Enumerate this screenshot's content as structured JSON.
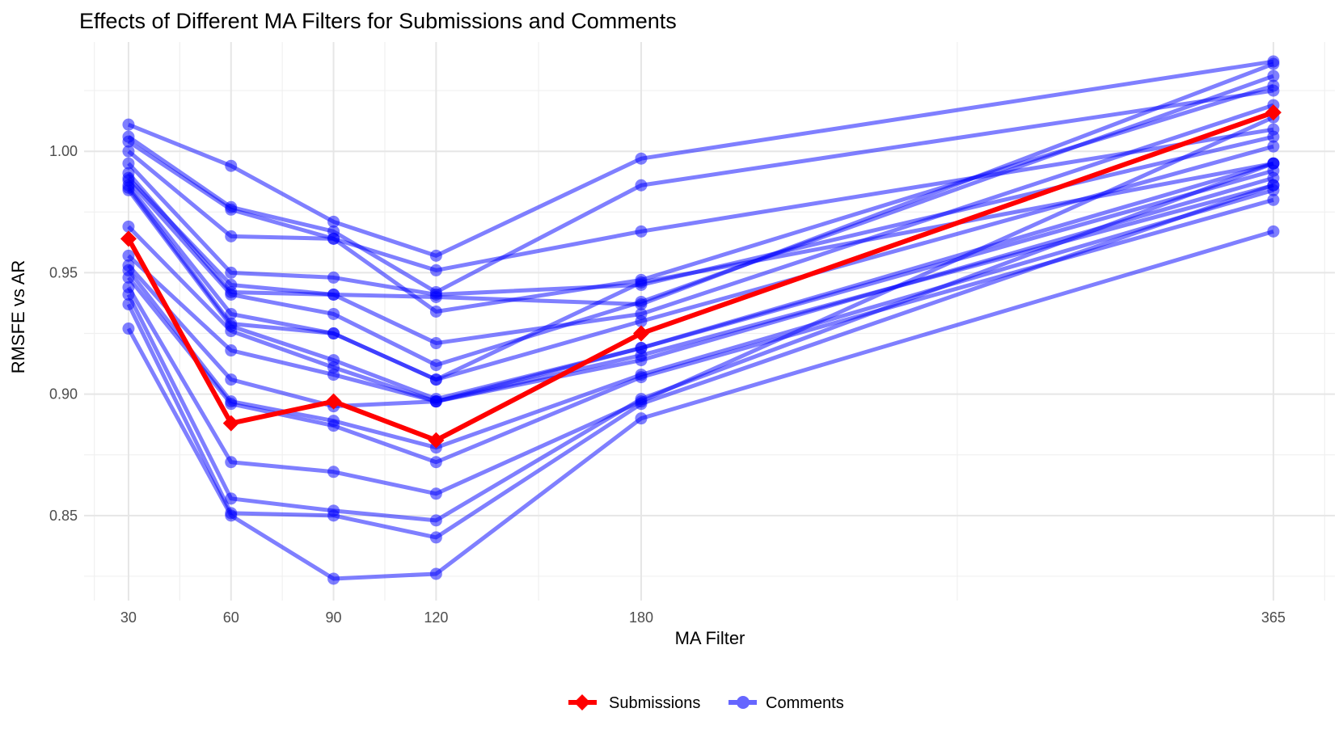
{
  "chart_data": {
    "type": "line",
    "title": "Effects of Different MA Filters for Submissions and Comments",
    "xlabel": "MA Filter",
    "ylabel": "RMSFE vs AR",
    "x": [
      30,
      60,
      90,
      120,
      180,
      365
    ],
    "x_tick_labels": [
      "30",
      "60",
      "90",
      "120",
      "180",
      "365"
    ],
    "xlim": [
      17,
      383
    ],
    "ylim": [
      0.815,
      1.045
    ],
    "y_ticks": [
      0.85,
      0.9,
      0.95,
      1.0
    ],
    "y_tick_labels": [
      "0.85",
      "0.90",
      "0.95",
      "1.00"
    ],
    "grid": true,
    "legend_position": "bottom",
    "legend": [
      {
        "label": "Submissions",
        "color": "#ff0000"
      },
      {
        "label": "Comments",
        "color": "#6666ff"
      }
    ],
    "series": [
      {
        "name": "Submissions",
        "color": "#ff0000",
        "values": [
          0.964,
          0.888,
          0.897,
          0.881,
          0.925,
          1.016
        ]
      },
      {
        "name": "Comments",
        "color": "#6666ff",
        "lines": [
          [
            1.011,
            0.994,
            0.971,
            0.957,
            0.997,
            1.037
          ],
          [
            1.006,
            0.977,
            0.967,
            0.942,
            0.986,
            1.025
          ],
          [
            1.004,
            0.976,
            0.964,
            0.951,
            0.967,
            1.009
          ],
          [
            1.0,
            0.965,
            0.964,
            0.934,
            0.947,
            1.027
          ],
          [
            0.995,
            0.95,
            0.948,
            0.941,
            0.945,
            1.006
          ],
          [
            0.991,
            0.942,
            0.941,
            0.94,
            0.937,
            1.036
          ],
          [
            0.989,
            0.945,
            0.941,
            0.921,
            0.933,
            1.019
          ],
          [
            0.988,
            0.941,
            0.933,
            0.912,
            0.938,
            1.031
          ],
          [
            0.986,
            0.933,
            0.925,
            0.906,
            0.946,
            0.995
          ],
          [
            0.985,
            0.929,
            0.925,
            0.906,
            0.93,
            1.002
          ],
          [
            0.984,
            0.928,
            0.914,
            0.898,
            0.919,
            0.995
          ],
          [
            0.969,
            0.926,
            0.911,
            0.897,
            0.919,
            0.992
          ],
          [
            0.957,
            0.918,
            0.908,
            0.897,
            0.914,
            0.989
          ],
          [
            0.953,
            0.906,
            0.895,
            0.897,
            0.916,
            0.986
          ],
          [
            0.951,
            0.897,
            0.889,
            0.878,
            0.908,
            0.984
          ],
          [
            0.948,
            0.896,
            0.887,
            0.872,
            0.907,
            0.98
          ],
          [
            0.944,
            0.872,
            0.868,
            0.859,
            0.897,
            1.014
          ],
          [
            0.941,
            0.857,
            0.852,
            0.848,
            0.898,
            0.995
          ],
          [
            0.937,
            0.851,
            0.85,
            0.841,
            0.896,
            0.986
          ],
          [
            0.927,
            0.85,
            0.824,
            0.826,
            0.89,
            0.967
          ]
        ]
      }
    ]
  }
}
